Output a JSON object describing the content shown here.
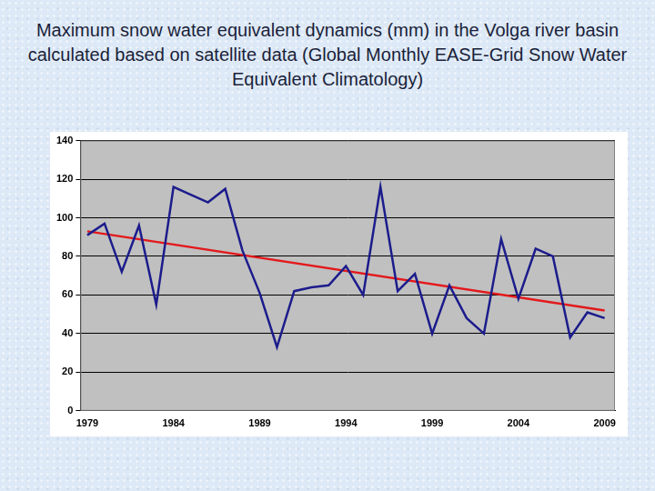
{
  "chart_data": {
    "type": "line",
    "title": "Maximum snow water equivalent dynamics (mm) in the Volga river basin calculated based on satellite data (Global Monthly EASE-Grid Snow Water Equivalent Climatology)",
    "x": [
      1979,
      1980,
      1981,
      1982,
      1983,
      1984,
      1985,
      1986,
      1987,
      1988,
      1989,
      1990,
      1991,
      1992,
      1993,
      1994,
      1995,
      1996,
      1997,
      1998,
      1999,
      2000,
      2001,
      2002,
      2003,
      2004,
      2005,
      2006,
      2007,
      2008,
      2009
    ],
    "series": [
      {
        "color": "#1c1c8c",
        "marker": "none",
        "line_style": "solid",
        "values": [
          91,
          97,
          72,
          96,
          55,
          116,
          112,
          108,
          115,
          83,
          61,
          33,
          62,
          64,
          65,
          75,
          60,
          116,
          62,
          71,
          40,
          65,
          48,
          40,
          89,
          58,
          84,
          80,
          38,
          51,
          48
        ]
      },
      {
        "color": "#e3191c",
        "marker": "none",
        "line_style": "solid",
        "x": [
          1979,
          2009
        ],
        "values": [
          93,
          52
        ]
      }
    ],
    "xlim": [
      1978.6,
      2009.6
    ],
    "xticks": [
      1979,
      1984,
      1989,
      1994,
      1999,
      2004,
      2009
    ],
    "ylim": [
      0,
      140
    ],
    "yticks": [
      0,
      20,
      40,
      60,
      80,
      100,
      120,
      140
    ],
    "grid": true
  }
}
